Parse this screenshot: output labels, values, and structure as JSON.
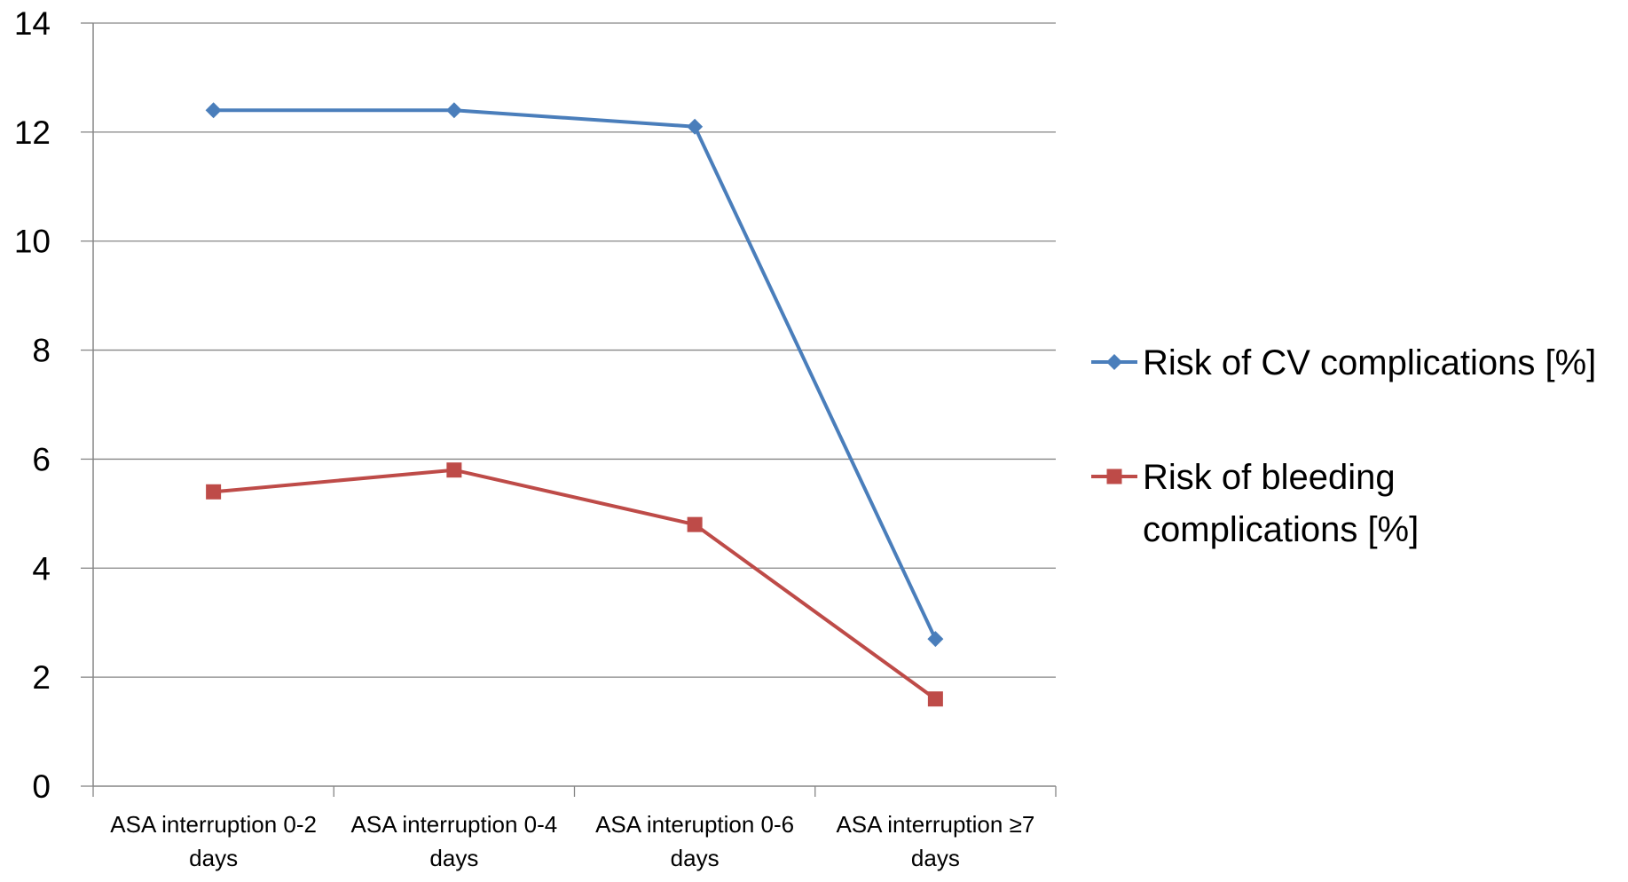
{
  "chart_data": {
    "type": "line",
    "title": "",
    "xlabel": "",
    "ylabel": "",
    "categories": [
      [
        "ASA interruption 0-2",
        "days"
      ],
      [
        "ASA interruption 0-4",
        "days"
      ],
      [
        "ASA interuption 0-6",
        "days"
      ],
      [
        "ASA interruption ≥7",
        "days"
      ]
    ],
    "ylim": [
      0,
      14
    ],
    "yticks": [
      0,
      2,
      4,
      6,
      8,
      10,
      12,
      14
    ],
    "grid": "horizontal",
    "legend_position": "right",
    "series": [
      {
        "name": "Risk of CV complications [%]",
        "legend_lines": [
          "Risk of CV complications [%]"
        ],
        "values": [
          12.4,
          12.4,
          12.1,
          2.7
        ],
        "color": "#4a7ebb",
        "marker": "diamond"
      },
      {
        "name": "Risk of bleeding complications [%]",
        "legend_lines": [
          "Risk of bleeding",
          "complications [%]"
        ],
        "values": [
          5.4,
          5.8,
          4.8,
          1.6
        ],
        "color": "#be4b48",
        "marker": "square"
      }
    ],
    "colors": {
      "grid": "#868686",
      "axis": "#868686"
    }
  }
}
